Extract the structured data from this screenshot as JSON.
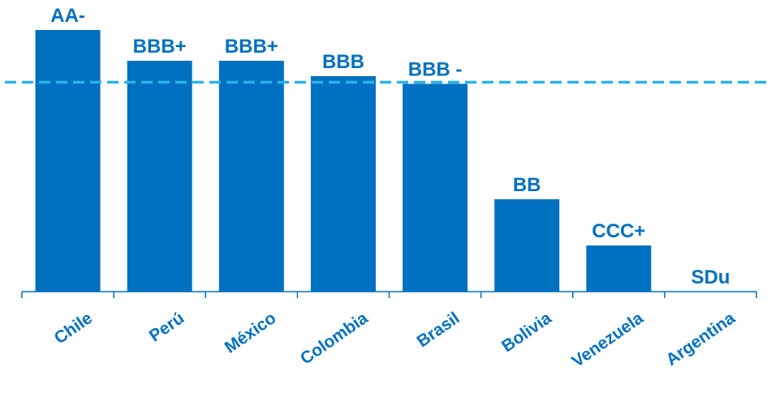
{
  "chart_data": {
    "type": "bar",
    "categories": [
      "Chile",
      "Perú",
      "México",
      "Colombia",
      "Brasil",
      "Bolivia",
      "Venezuela",
      "Argentina"
    ],
    "values": [
      17,
      15,
      15,
      14,
      13.5,
      6,
      3,
      0
    ],
    "data_labels": [
      "AA-",
      "BBB+",
      "BBB+",
      "BBB",
      "BBB -",
      "BB",
      "CCC+",
      "SDu"
    ],
    "reference_line": {
      "value": 13.5,
      "style": "dashed"
    },
    "ylim": [
      0,
      18
    ],
    "grid": false,
    "legend": "none",
    "title": "",
    "xlabel": "",
    "ylabel": "",
    "colors": {
      "bar": "#0070c0",
      "label": "#0070c0",
      "reference_line": "#2bb3e8"
    }
  }
}
